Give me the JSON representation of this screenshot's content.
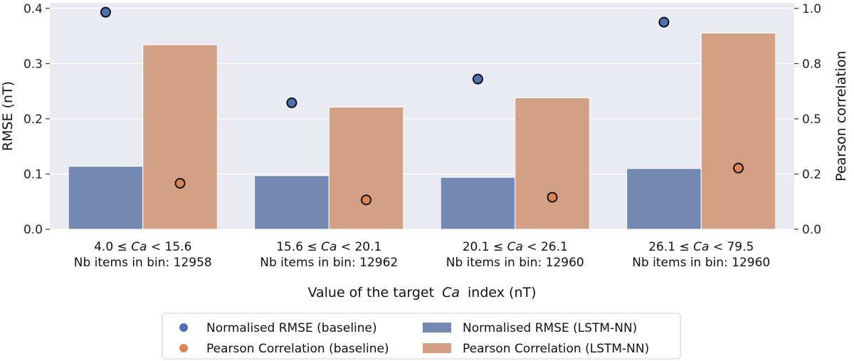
{
  "chart_data": {
    "type": "bar",
    "categories": [
      {
        "lower": "4.0",
        "upper": "15.6",
        "symbol": "Ca",
        "items_label": "Nb items in bin: 12958"
      },
      {
        "lower": "15.6",
        "upper": "20.1",
        "symbol": "Ca",
        "items_label": "Nb items in bin: 12962"
      },
      {
        "lower": "20.1",
        "upper": "26.1",
        "symbol": "Ca",
        "items_label": "Nb items in bin: 12960"
      },
      {
        "lower": "26.1",
        "upper": "79.5",
        "symbol": "Ca",
        "items_label": "Nb items in bin: 12960"
      }
    ],
    "bar_series": [
      {
        "name": "Normalised RMSE (LSTM-NN)",
        "axis": "left",
        "color": "#7389b4",
        "values": [
          0.114,
          0.097,
          0.094,
          0.11
        ]
      },
      {
        "name": "Pearson Correlation (LSTM-NN)",
        "axis": "right",
        "color": "#d4a084",
        "values": [
          0.835,
          0.553,
          0.595,
          0.888
        ]
      }
    ],
    "point_series": [
      {
        "name": "Normalised RMSE (baseline)",
        "axis": "left",
        "color": "#4c72b0",
        "values": [
          0.393,
          0.229,
          0.272,
          0.375
        ]
      },
      {
        "name": "Pearson Correlation (baseline)",
        "axis": "right",
        "color": "#dd8452",
        "values": [
          0.208,
          0.133,
          0.145,
          0.277
        ]
      }
    ],
    "xlabel_prefix": "Value of the target",
    "xlabel_symbol": "Ca",
    "xlabel_suffix": "index (nT)",
    "ylabel_left": "RMSE (nT)",
    "ylabel_right": "Pearson correlation",
    "ylim_left": [
      0,
      0.41
    ],
    "ylim_right": [
      0,
      1.025
    ],
    "yticks_left": [
      "0.0",
      "0.1",
      "0.2",
      "0.3",
      "0.4"
    ],
    "yticks_right": [
      "0.0",
      "0.2",
      "0.5",
      "0.8",
      "1.0"
    ],
    "yticks_right_values": [
      0,
      0.25,
      0.5,
      0.75,
      1.0
    ],
    "yticks_left_values": [
      0,
      0.1,
      0.2,
      0.3,
      0.4
    ],
    "grid": true,
    "legend": {
      "placement": "bottom-center",
      "entries": [
        {
          "label": "Normalised RMSE (baseline)",
          "kind": "dot",
          "color": "#4c72b0"
        },
        {
          "label": "Normalised RMSE (LSTM-NN)",
          "kind": "patch",
          "color": "#7389b4"
        },
        {
          "label": "Pearson Correlation (baseline)",
          "kind": "dot",
          "color": "#dd8452"
        },
        {
          "label": "Pearson Correlation (LSTM-NN)",
          "kind": "patch",
          "color": "#d4a084"
        }
      ]
    },
    "colors": {
      "plot_background": "#eaeaf2",
      "grid": "#ffffff",
      "marker_edge": "#111111"
    }
  }
}
